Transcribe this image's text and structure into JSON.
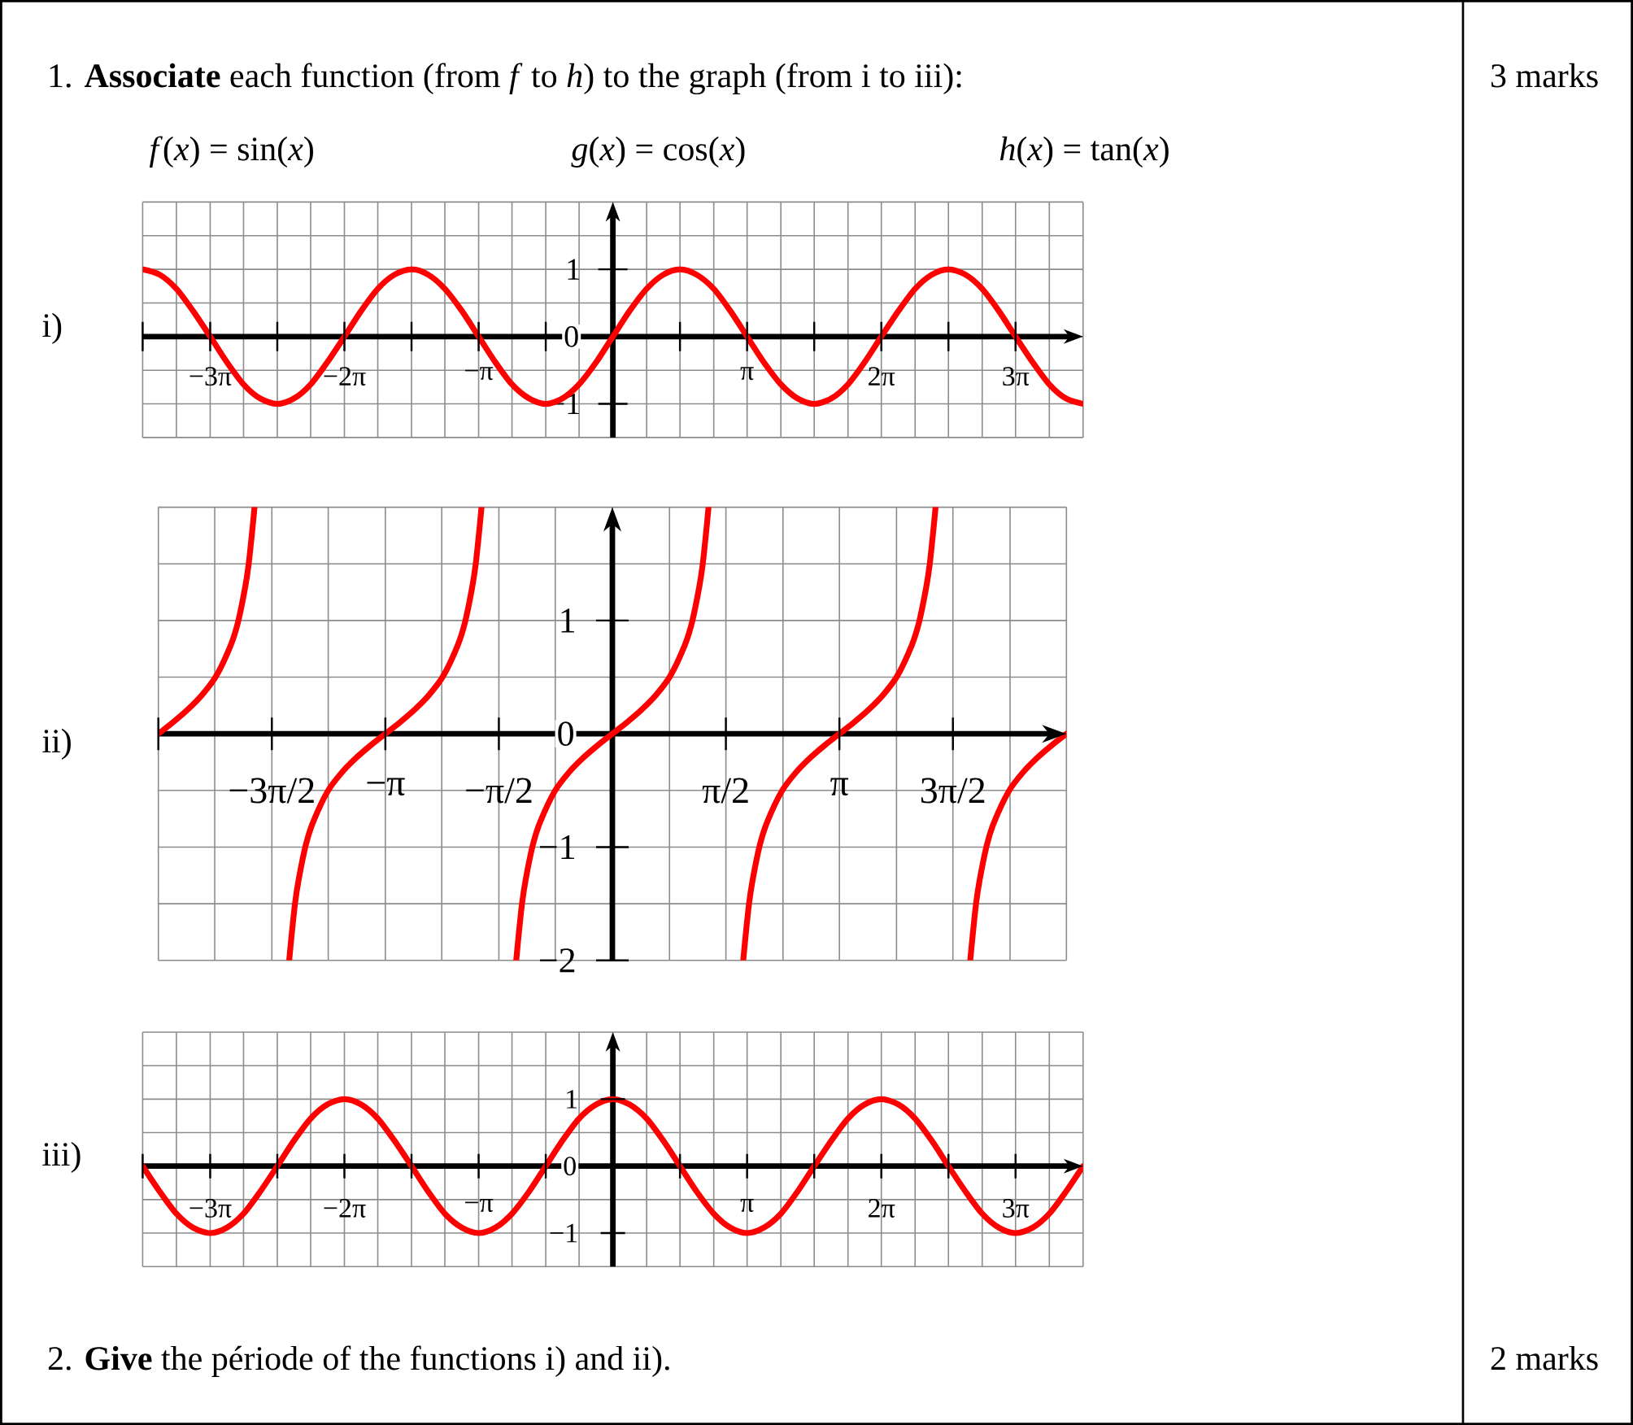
{
  "chart_data": [
    {
      "type": "line",
      "title": "i)",
      "annotations": [
        "1. **Associate** each function (from *f* to *h*) to the graph (from i to iii):",
        "3 marks",
        "*f*(*x*) = sin(*x*)",
        "*g*(*x*) = cos(*x*)",
        "*h*(*x*) = tan(*x*)"
      ],
      "x": [
        -11,
        -10.6,
        -10.21,
        -9.82,
        -9.42,
        -9.03,
        -8.64,
        -8.25,
        -7.85,
        -7.46,
        -7.07,
        -6.68,
        -6.28,
        -5.89,
        -5.5,
        -5.11,
        -4.71,
        -4.32,
        -3.93,
        -3.53,
        -3.14,
        -2.75,
        -2.36,
        -1.96,
        -1.57,
        -1.18,
        -0.79,
        -0.39,
        0,
        0.39,
        0.79,
        1.18,
        1.57,
        1.96,
        2.36,
        2.75,
        3.14,
        3.53,
        3.93,
        4.32,
        4.71,
        5.11,
        5.5,
        5.89,
        6.28,
        6.68,
        7.07,
        7.46,
        7.85,
        8.25,
        8.64,
        9.03,
        9.42,
        9.82,
        10.21,
        10.6,
        11
      ],
      "series": [
        {
          "color": "#ff0000",
          "values": [
            1,
            0.92,
            0.71,
            0.38,
            0,
            -0.38,
            -0.71,
            -0.92,
            -1,
            -0.92,
            -0.71,
            -0.38,
            0,
            0.38,
            0.71,
            0.92,
            1,
            0.92,
            0.71,
            0.38,
            0,
            -0.38,
            -0.71,
            -0.92,
            -1,
            -0.92,
            -0.71,
            -0.38,
            0,
            0.38,
            0.71,
            0.92,
            1,
            0.92,
            0.71,
            0.38,
            0,
            -0.38,
            -0.71,
            -0.92,
            -1,
            -0.92,
            -0.71,
            -0.38,
            0,
            0.38,
            0.71,
            0.92,
            1,
            0.92,
            0.71,
            0.38,
            0,
            -0.38,
            -0.71,
            -0.92,
            -1
          ]
        }
      ],
      "xlim": [
        -11,
        11
      ],
      "ylim": [
        -1.5,
        2
      ],
      "xticks": [
        {
          "value": -11,
          "label": null
        },
        {
          "value": -10.21,
          "label": null
        },
        {
          "value": -9.42,
          "label": "−3π"
        },
        {
          "value": -8.64,
          "label": null
        },
        {
          "value": -7.85,
          "label": null
        },
        {
          "value": -7.07,
          "label": null
        },
        {
          "value": -6.28,
          "label": "−2π"
        },
        {
          "value": -5.5,
          "label": null
        },
        {
          "value": -4.71,
          "label": null
        },
        {
          "value": -3.93,
          "label": null
        },
        {
          "value": -3.14,
          "label": "−π"
        },
        {
          "value": -2.36,
          "label": null
        },
        {
          "value": -1.57,
          "label": null
        },
        {
          "value": -0.79,
          "label": null
        },
        {
          "value": 0,
          "label": null
        },
        {
          "value": 0.79,
          "label": null
        },
        {
          "value": 1.57,
          "label": null
        },
        {
          "value": 2.36,
          "label": null
        },
        {
          "value": 3.14,
          "label": "π"
        },
        {
          "value": 3.93,
          "label": null
        },
        {
          "value": 4.71,
          "label": null
        },
        {
          "value": 5.5,
          "label": null
        },
        {
          "value": 6.28,
          "label": "2π"
        },
        {
          "value": 7.07,
          "label": null
        },
        {
          "value": 7.85,
          "label": null
        },
        {
          "value": 8.64,
          "label": null
        },
        {
          "value": 9.42,
          "label": "3π"
        },
        {
          "value": 10.21,
          "label": null
        },
        {
          "value": 11,
          "label": null
        }
      ],
      "yticks": [
        {
          "value": -1.5,
          "label": null
        },
        {
          "value": -1,
          "label": "−1"
        },
        {
          "value": -0.5,
          "label": null
        },
        0,
        {
          "value": 0.5,
          "label": null
        },
        1,
        {
          "value": 1.5,
          "label": null
        },
        {
          "value": 2,
          "label": null
        }
      ],
      "grid": true
    },
    {
      "type": "line",
      "title": "ii)",
      "x": [
        -6.28,
        -6.08,
        -5.88,
        -5.68,
        -5.48,
        -5.28,
        -5.18,
        -5.08,
        -5.03,
        -4.98,
        -4.95,
        -4.71,
        -4.47,
        -4.44,
        -4.39,
        -4.34,
        -4.24,
        -4.14,
        -3.94,
        -3.74,
        -3.54,
        -3.34,
        -3.14,
        -2.94,
        -2.74,
        -2.54,
        -2.34,
        -2.14,
        -2.04,
        -1.94,
        -1.89,
        -1.84,
        -1.81,
        -1.57,
        -1.33,
        -1.3,
        -1.25,
        -1.2,
        -1.1,
        -1,
        -0.8,
        -0.6,
        -0.4,
        -0.2,
        0,
        0.2,
        0.4,
        0.6,
        0.8,
        1,
        1.1,
        1.2,
        1.25,
        1.3,
        1.33,
        1.57,
        1.81,
        1.84,
        1.89,
        1.94,
        2.04,
        2.14,
        2.34,
        2.54,
        2.74,
        2.94,
        3.14,
        3.34,
        3.54,
        3.74,
        3.94,
        4.14,
        4.24,
        4.34,
        4.39,
        4.44,
        4.47,
        4.71,
        4.95,
        4.98,
        5.03,
        5.08,
        5.18,
        5.28,
        5.48,
        5.68,
        5.88,
        6.08,
        6.28
      ],
      "series": [
        {
          "color": "#ff0000",
          "values": [
            0,
            0.1,
            0.21,
            0.34,
            0.51,
            0.78,
            0.98,
            1.29,
            1.5,
            1.8,
            2,
            null,
            -2,
            -1.8,
            -1.5,
            -1.29,
            -0.98,
            -0.78,
            -0.51,
            -0.34,
            -0.21,
            -0.1,
            0,
            0.1,
            0.21,
            0.34,
            0.51,
            0.78,
            0.98,
            1.29,
            1.5,
            1.8,
            2,
            null,
            -2,
            -1.8,
            -1.5,
            -1.29,
            -0.98,
            -0.78,
            -0.51,
            -0.34,
            -0.21,
            -0.1,
            0,
            0.1,
            0.21,
            0.34,
            0.51,
            0.78,
            0.98,
            1.29,
            1.5,
            1.8,
            2,
            null,
            -2,
            -1.8,
            -1.5,
            -1.29,
            -0.98,
            -0.78,
            -0.51,
            -0.34,
            -0.21,
            -0.1,
            0,
            0.1,
            0.21,
            0.34,
            0.51,
            0.78,
            0.98,
            1.29,
            1.5,
            1.8,
            2,
            null,
            -2,
            -1.8,
            -1.5,
            -1.29,
            -0.98,
            -0.78,
            -0.51,
            -0.34,
            -0.21,
            -0.1,
            0
          ]
        }
      ],
      "xlim": [
        -6.28,
        6.28
      ],
      "ylim": [
        -2,
        2
      ],
      "xticks": [
        {
          "value": -6.28,
          "label": null
        },
        {
          "value": -5.5,
          "label": null
        },
        {
          "value": -4.71,
          "label": "−3π/2"
        },
        {
          "value": -3.93,
          "label": null
        },
        {
          "value": -3.14,
          "label": "−π"
        },
        {
          "value": -2.36,
          "label": null
        },
        {
          "value": -1.57,
          "label": "−π/2"
        },
        {
          "value": -0.79,
          "label": null
        },
        {
          "value": 0,
          "label": null
        },
        {
          "value": 0.79,
          "label": null
        },
        {
          "value": 1.57,
          "label": "π/2"
        },
        {
          "value": 2.36,
          "label": null
        },
        {
          "value": 3.14,
          "label": "π"
        },
        {
          "value": 3.93,
          "label": null
        },
        {
          "value": 4.71,
          "label": "3π/2"
        },
        {
          "value": 5.5,
          "label": null
        },
        {
          "value": 6.28,
          "label": null
        }
      ],
      "yticks": [
        {
          "value": -2,
          "label": "−2"
        },
        {
          "value": -1.5,
          "label": null
        },
        {
          "value": -1,
          "label": "−1"
        },
        {
          "value": -0.5,
          "label": null
        },
        0,
        {
          "value": 0.5,
          "label": null
        },
        1,
        {
          "value": 1.5,
          "label": null
        },
        {
          "value": 2,
          "label": null
        }
      ],
      "grid": true
    },
    {
      "type": "line",
      "title": "iii)",
      "annotations": [
        "2. **Give** the période of the functions i) and ii).",
        "2 marks"
      ],
      "x": [
        -11,
        -10.6,
        -10.21,
        -9.82,
        -9.42,
        -9.03,
        -8.64,
        -8.25,
        -7.85,
        -7.46,
        -7.07,
        -6.68,
        -6.28,
        -5.89,
        -5.5,
        -5.11,
        -4.71,
        -4.32,
        -3.93,
        -3.53,
        -3.14,
        -2.75,
        -2.36,
        -1.96,
        -1.57,
        -1.18,
        -0.79,
        -0.39,
        0,
        0.39,
        0.79,
        1.18,
        1.57,
        1.96,
        2.36,
        2.75,
        3.14,
        3.53,
        3.93,
        4.32,
        4.71,
        5.11,
        5.5,
        5.89,
        6.28,
        6.68,
        7.07,
        7.46,
        7.85,
        8.25,
        8.64,
        9.03,
        9.42,
        9.82,
        10.21,
        10.6,
        11
      ],
      "series": [
        {
          "color": "#ff0000",
          "values": [
            0,
            -0.38,
            -0.71,
            -0.92,
            -1,
            -0.92,
            -0.71,
            -0.38,
            0,
            0.38,
            0.71,
            0.92,
            1,
            0.92,
            0.71,
            0.38,
            0,
            -0.38,
            -0.71,
            -0.92,
            -1,
            -0.92,
            -0.71,
            -0.38,
            0,
            0.38,
            0.71,
            0.92,
            1,
            0.92,
            0.71,
            0.38,
            0,
            -0.38,
            -0.71,
            -0.92,
            -1,
            -0.92,
            -0.71,
            -0.38,
            0,
            0.38,
            0.71,
            0.92,
            1,
            0.92,
            0.71,
            0.38,
            0,
            -0.38,
            -0.71,
            -0.92,
            -1,
            -0.92,
            -0.71,
            -0.38,
            0
          ]
        }
      ],
      "xlim": [
        -11,
        11
      ],
      "ylim": [
        -1.5,
        2
      ],
      "xticks": [
        {
          "value": -11,
          "label": null
        },
        {
          "value": -10.21,
          "label": null
        },
        {
          "value": -9.42,
          "label": "−3π"
        },
        {
          "value": -8.64,
          "label": null
        },
        {
          "value": -7.85,
          "label": null
        },
        {
          "value": -7.07,
          "label": null
        },
        {
          "value": -6.28,
          "label": "−2π"
        },
        {
          "value": -5.5,
          "label": null
        },
        {
          "value": -4.71,
          "label": null
        },
        {
          "value": -3.93,
          "label": null
        },
        {
          "value": -3.14,
          "label": "−π"
        },
        {
          "value": -2.36,
          "label": null
        },
        {
          "value": -1.57,
          "label": null
        },
        {
          "value": -0.79,
          "label": null
        },
        {
          "value": 0,
          "label": null
        },
        {
          "value": 0.79,
          "label": null
        },
        {
          "value": 1.57,
          "label": null
        },
        {
          "value": 2.36,
          "label": null
        },
        {
          "value": 3.14,
          "label": "π"
        },
        {
          "value": 3.93,
          "label": null
        },
        {
          "value": 4.71,
          "label": null
        },
        {
          "value": 5.5,
          "label": null
        },
        {
          "value": 6.28,
          "label": "2π"
        },
        {
          "value": 7.07,
          "label": null
        },
        {
          "value": 7.85,
          "label": null
        },
        {
          "value": 8.64,
          "label": null
        },
        {
          "value": 9.42,
          "label": "3π"
        },
        {
          "value": 10.21,
          "label": null
        },
        {
          "value": 11,
          "label": null
        }
      ],
      "yticks": [
        {
          "value": -1.5,
          "label": null
        },
        {
          "value": -1,
          "label": "−1"
        },
        {
          "value": -0.5,
          "label": null
        },
        0,
        {
          "value": 0.5,
          "label": null
        },
        1,
        {
          "value": 1.5,
          "label": null
        },
        {
          "value": 2,
          "label": null
        }
      ],
      "grid": true
    }
  ]
}
